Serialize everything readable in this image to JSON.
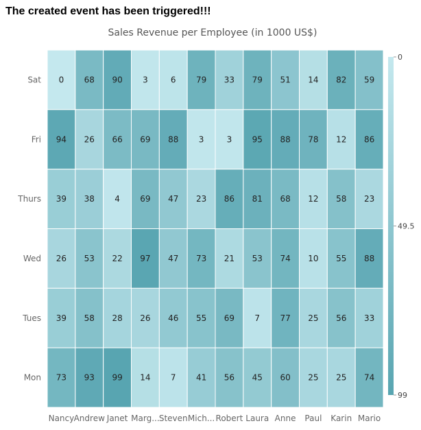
{
  "header": {
    "event_message": "The created event has been triggered!!!"
  },
  "chart_data": {
    "type": "heatmap",
    "title": "Sales Revenue per Employee (in 1000 US$)",
    "x_categories": [
      "Nancy",
      "Andrew",
      "Janet",
      "Marg...",
      "Steven",
      "Mich...",
      "Robert",
      "Laura",
      "Anne",
      "Paul",
      "Karin",
      "Mario"
    ],
    "y_categories": [
      "Sat",
      "Fri",
      "Thurs",
      "Wed",
      "Tues",
      "Mon"
    ],
    "values": [
      [
        0,
        68,
        90,
        3,
        6,
        79,
        33,
        79,
        51,
        14,
        82,
        59
      ],
      [
        94,
        26,
        66,
        69,
        88,
        3,
        3,
        95,
        88,
        78,
        12,
        86
      ],
      [
        39,
        38,
        4,
        69,
        47,
        23,
        86,
        81,
        68,
        12,
        58,
        23
      ],
      [
        26,
        53,
        22,
        97,
        47,
        73,
        21,
        53,
        74,
        10,
        55,
        88
      ],
      [
        39,
        58,
        28,
        26,
        46,
        55,
        69,
        7,
        77,
        25,
        56,
        33
      ],
      [
        73,
        93,
        99,
        14,
        7,
        41,
        56,
        45,
        60,
        25,
        25,
        74
      ]
    ],
    "legend": {
      "labels": [
        "0",
        "49.5",
        "99"
      ],
      "min": 0,
      "max": 99,
      "position": "right"
    },
    "colors": {
      "low": "#c4e8ee",
      "high": "#58a5b1"
    }
  }
}
